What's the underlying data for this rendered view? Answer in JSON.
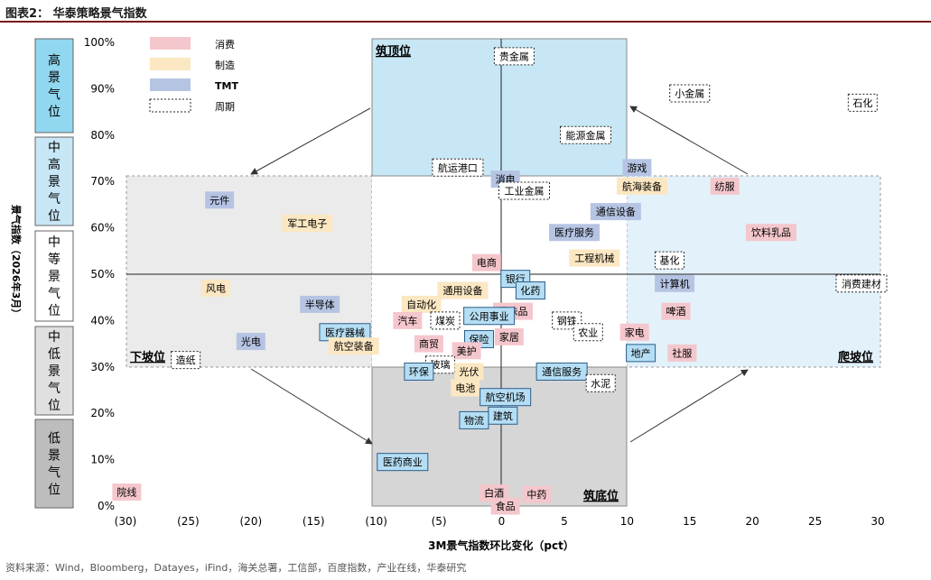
{
  "title": "图表2：  华泰策略景气指数",
  "source": "资料来源：Wind，Bloomberg，Datayes，iFind，海关总署，工信部，百度指数，产业在线，华泰研究",
  "colors": {
    "consumption": "#f4c7cc",
    "manufacturing": "#fbe7c2",
    "tmt": "#b6c4e3",
    "cycle": "#ffffff",
    "top_zone": "#c8e7f6",
    "climb_zone": "#e3f1fb",
    "down_zone": "#ebebeb",
    "bottom_zone": "#d6d6d6",
    "selected": "#b5def4"
  },
  "legend": [
    {
      "key": "consumption",
      "label": "消费"
    },
    {
      "key": "manufacturing",
      "label": "制造"
    },
    {
      "key": "tmt",
      "label": "TMT"
    },
    {
      "key": "cycle",
      "label": "周期"
    }
  ],
  "ylabel": "景气指数（2026年3月）",
  "zone_names": {
    "top": "筑顶位",
    "down": "下坡位",
    "bottom": "筑底位",
    "climb": "爬坡位"
  },
  "left_levels": [
    "高景气位",
    "中高景气位",
    "中等景气位",
    "中低景气位",
    "低景气位"
  ],
  "chart_data": {
    "type": "scatter",
    "xlabel": "3M景气指数环比变化（pct）",
    "ylabel": "景气指数（2026年3月）",
    "x_ticks": [
      "(30)",
      "(25)",
      "(20)",
      "(15)",
      "(10)",
      "(5)",
      "0",
      "5",
      "10",
      "15",
      "20",
      "25",
      "30"
    ],
    "y_ticks": [
      "0%",
      "10%",
      "20%",
      "30%",
      "40%",
      "50%",
      "60%",
      "70%",
      "80%",
      "90%",
      "100%"
    ],
    "xlim": [
      -30,
      30
    ],
    "ylim": [
      0,
      100
    ],
    "points": [
      {
        "label": "贵金属",
        "x": 1,
        "y": 97,
        "cat": "cycle"
      },
      {
        "label": "小金属",
        "x": 15,
        "y": 89,
        "cat": "cycle"
      },
      {
        "label": "石化",
        "x": 28.8,
        "y": 87,
        "cat": "cycle"
      },
      {
        "label": "能源金属",
        "x": 6.7,
        "y": 80,
        "cat": "cycle"
      },
      {
        "label": "航运港口",
        "x": -3.5,
        "y": 73,
        "cat": "cycle"
      },
      {
        "label": "游戏",
        "x": 10.8,
        "y": 73,
        "cat": "tmt"
      },
      {
        "label": "消电",
        "x": 0.3,
        "y": 70.5,
        "cat": "tmt"
      },
      {
        "label": "航海装备",
        "x": 11.2,
        "y": 69,
        "cat": "manufacturing"
      },
      {
        "label": "纺服",
        "x": 17.8,
        "y": 69,
        "cat": "consumption"
      },
      {
        "label": "工业金属",
        "x": 1.8,
        "y": 68,
        "cat": "cycle"
      },
      {
        "label": "元件",
        "x": -22.5,
        "y": 66,
        "cat": "tmt"
      },
      {
        "label": "通信设备",
        "x": 9.1,
        "y": 63.5,
        "cat": "tmt"
      },
      {
        "label": "军工电子",
        "x": -15.5,
        "y": 61,
        "cat": "manufacturing"
      },
      {
        "label": "医疗服务",
        "x": 5.8,
        "y": 59,
        "cat": "tmt"
      },
      {
        "label": "饮料乳品",
        "x": 21.5,
        "y": 59,
        "cat": "consumption"
      },
      {
        "label": "工程机械",
        "x": 7.4,
        "y": 53.5,
        "cat": "manufacturing"
      },
      {
        "label": "基化",
        "x": 13.4,
        "y": 53,
        "cat": "cycle"
      },
      {
        "label": "电商",
        "x": -1.2,
        "y": 52.5,
        "cat": "consumption"
      },
      {
        "label": "银行",
        "x": 1.1,
        "y": 49,
        "cat": "selected"
      },
      {
        "label": "计算机",
        "x": 13.8,
        "y": 48,
        "cat": "tmt"
      },
      {
        "label": "消费建材",
        "x": 28.7,
        "y": 48,
        "cat": "cycle"
      },
      {
        "label": "风电",
        "x": -22.8,
        "y": 47,
        "cat": "manufacturing"
      },
      {
        "label": "化药",
        "x": 2.3,
        "y": 46.5,
        "cat": "selected"
      },
      {
        "label": "通用设备",
        "x": -3.1,
        "y": 46.5,
        "cat": "manufacturing"
      },
      {
        "label": "自动化",
        "x": -6.4,
        "y": 43.5,
        "cat": "manufacturing"
      },
      {
        "label": "半导体",
        "x": -14.5,
        "y": 43.5,
        "cat": "tmt"
      },
      {
        "label": "调味品",
        "x": 0.9,
        "y": 42,
        "cat": "consumption"
      },
      {
        "label": "啤酒",
        "x": 13.9,
        "y": 42,
        "cat": "consumption"
      },
      {
        "label": "公用事业",
        "x": -1,
        "y": 41,
        "cat": "selected"
      },
      {
        "label": "钢铁",
        "x": 5.2,
        "y": 40,
        "cat": "cycle"
      },
      {
        "label": "汽车",
        "x": -7.5,
        "y": 40,
        "cat": "consumption"
      },
      {
        "label": "煤炭",
        "x": -4.5,
        "y": 40,
        "cat": "cycle"
      },
      {
        "label": "医疗器械",
        "x": -12.5,
        "y": 37.5,
        "cat": "selected"
      },
      {
        "label": "农业",
        "x": 6.9,
        "y": 37.5,
        "cat": "cycle"
      },
      {
        "label": "家电",
        "x": 10.6,
        "y": 37.5,
        "cat": "consumption"
      },
      {
        "label": "家居",
        "x": 0.6,
        "y": 36.5,
        "cat": "consumption"
      },
      {
        "label": "保险",
        "x": -1.8,
        "y": 36,
        "cat": "selected"
      },
      {
        "label": "光电",
        "x": -20,
        "y": 35.5,
        "cat": "tmt"
      },
      {
        "label": "商贸",
        "x": -5.8,
        "y": 35,
        "cat": "consumption"
      },
      {
        "label": "航空装备",
        "x": -11.8,
        "y": 34.5,
        "cat": "manufacturing"
      },
      {
        "label": "美护",
        "x": -2.8,
        "y": 33.5,
        "cat": "consumption"
      },
      {
        "label": "地产",
        "x": 11.1,
        "y": 33,
        "cat": "selected"
      },
      {
        "label": "社服",
        "x": 14.4,
        "y": 33,
        "cat": "consumption"
      },
      {
        "label": "造纸",
        "x": -25.2,
        "y": 31.5,
        "cat": "cycle"
      },
      {
        "label": "玻璃",
        "x": -4.9,
        "y": 30.5,
        "cat": "cycle"
      },
      {
        "label": "环保",
        "x": -6.6,
        "y": 29,
        "cat": "selected"
      },
      {
        "label": "光伏",
        "x": -2.6,
        "y": 29,
        "cat": "manufacturing"
      },
      {
        "label": "通信服务",
        "x": 4.8,
        "y": 29,
        "cat": "selected"
      },
      {
        "label": "水泥",
        "x": 7.9,
        "y": 26.5,
        "cat": "cycle"
      },
      {
        "label": "电池",
        "x": -2.9,
        "y": 25.5,
        "cat": "manufacturing"
      },
      {
        "label": "航空机场",
        "x": 0.3,
        "y": 23.5,
        "cat": "selected"
      },
      {
        "label": "建筑",
        "x": 0.1,
        "y": 19.5,
        "cat": "selected"
      },
      {
        "label": "物流",
        "x": -2.2,
        "y": 18.5,
        "cat": "selected"
      },
      {
        "label": "医药商业",
        "x": -7.9,
        "y": 9.5,
        "cat": "selected"
      },
      {
        "label": "院线",
        "x": -29.9,
        "y": 3,
        "cat": "consumption"
      },
      {
        "label": "白酒",
        "x": -0.6,
        "y": 2.8,
        "cat": "consumption"
      },
      {
        "label": "中药",
        "x": 2.8,
        "y": 2.5,
        "cat": "consumption"
      },
      {
        "label": "食品",
        "x": 0.3,
        "y": 0,
        "cat": "consumption"
      }
    ]
  }
}
